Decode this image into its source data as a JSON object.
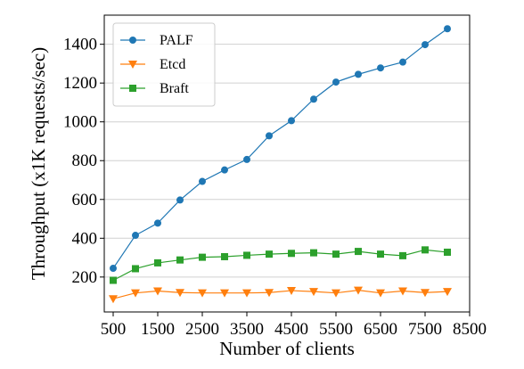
{
  "chart_data": {
    "type": "line",
    "xlabel": "Number of clients",
    "ylabel": "Throughput (x1K requests/sec)",
    "xlim": [
      300,
      8500
    ],
    "ylim": [
      20,
      1550
    ],
    "xticks": [
      500,
      1500,
      2500,
      3500,
      4500,
      5500,
      6500,
      7500,
      8500
    ],
    "yticks": [
      200,
      400,
      600,
      800,
      1000,
      1200,
      1400
    ],
    "grid": "horizontal",
    "legend_position": "top-left",
    "x": [
      500,
      1000,
      1500,
      2000,
      2500,
      3000,
      3500,
      4000,
      4500,
      5000,
      5500,
      6000,
      6500,
      7000,
      7500,
      8000
    ],
    "series": [
      {
        "name": "PALF",
        "color": "#1f77b4",
        "marker": "circle",
        "values": [
          245,
          415,
          478,
          597,
          693,
          752,
          806,
          928,
          1006,
          1117,
          1205,
          1245,
          1278,
          1308,
          1398,
          1480
        ]
      },
      {
        "name": "Etcd",
        "color": "#ff7f0e",
        "marker": "triangle-down",
        "values": [
          88,
          118,
          128,
          120,
          118,
          118,
          118,
          120,
          130,
          125,
          118,
          132,
          118,
          128,
          120,
          125
        ]
      },
      {
        "name": "Braft",
        "color": "#2ca02c",
        "marker": "square",
        "values": [
          183,
          243,
          273,
          288,
          302,
          305,
          312,
          318,
          322,
          325,
          318,
          332,
          318,
          310,
          340,
          328
        ]
      }
    ]
  }
}
